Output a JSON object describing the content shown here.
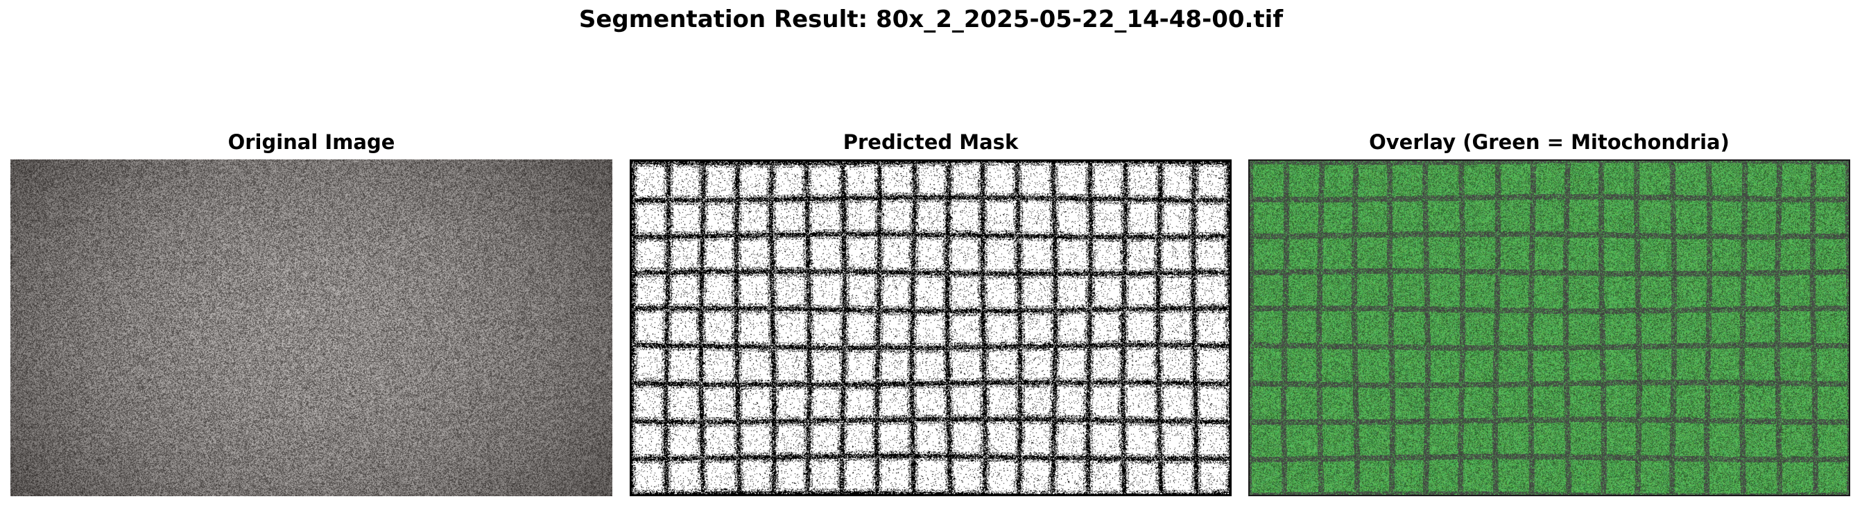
{
  "figure": {
    "title": "Segmentation Result: 80x_2_2025-05-22_14-48-00.tif"
  },
  "panels": [
    {
      "title": "Original Image",
      "kind": "microscopy-image"
    },
    {
      "title": "Predicted Mask",
      "kind": "binary-mask"
    },
    {
      "title": "Overlay (Green = Mitochondria)",
      "kind": "overlay"
    }
  ],
  "colors": {
    "mask_foreground": "#ffffff",
    "mask_background": "#000000",
    "overlay_green": "#4caf50",
    "original_tone": "#8a8480"
  },
  "grid": {
    "columns": 17,
    "rows": 9
  }
}
